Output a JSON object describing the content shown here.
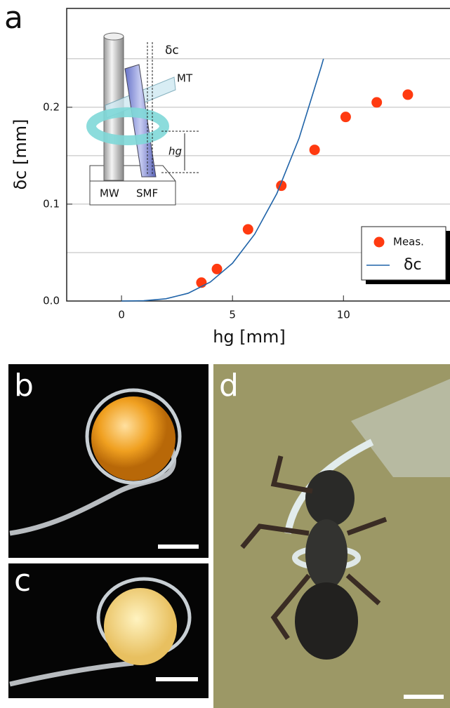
{
  "chart_data": {
    "type": "line",
    "xlabel": "hg [mm]",
    "ylabel": "δc [mm]",
    "xlim": [
      -2.47,
      14.8
    ],
    "ylim": [
      0,
      0.302
    ],
    "xticks": [
      0,
      5,
      10
    ],
    "yticks": [
      {
        "value": 0,
        "label": "0.0"
      },
      0.1,
      0.2
    ],
    "ygrid": [
      0.05,
      0.1,
      0.15,
      0.2,
      0.25
    ],
    "legend": "lower right",
    "series": [
      {
        "name": "Meas.",
        "type": "scatter",
        "color": "#ff3a10",
        "x": [
          3.6,
          4.3,
          5.7,
          7.2,
          8.7,
          10.1,
          11.5,
          12.9
        ],
        "values": [
          0.019,
          0.033,
          0.074,
          0.119,
          0.156,
          0.19,
          0.205,
          0.213
        ]
      },
      {
        "name": "δc",
        "type": "line",
        "color": "#1f63a8",
        "x": [
          0,
          1,
          2,
          3,
          4,
          5,
          6,
          7,
          8,
          9,
          9.1
        ],
        "values": [
          0,
          0.0003,
          0.0023,
          0.008,
          0.0196,
          0.039,
          0.069,
          0.111,
          0.168,
          0.242,
          0.25
        ]
      }
    ]
  },
  "inset": {
    "gap": "δc",
    "tube": "MT",
    "height": "hg",
    "wire": "MW",
    "fiber": "SMF"
  },
  "panels": {
    "a": "a",
    "b": "b",
    "c": "c",
    "d": "d"
  }
}
